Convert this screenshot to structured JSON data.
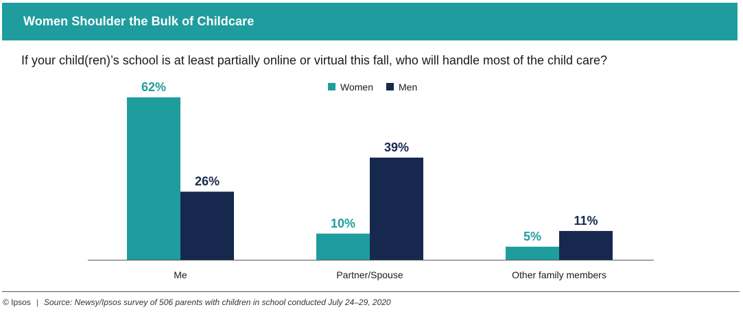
{
  "header": {
    "title": "Women Shoulder the Bulk of Childcare"
  },
  "question": "If your child(ren)’s school is at least partially online or virtual this fall, who will handle most of the child care?",
  "colors": {
    "women": "#1f9d9e",
    "men": "#17284e",
    "header_bg": "#1f9d9e"
  },
  "chart_data": {
    "type": "bar",
    "title": "Women Shoulder the Bulk of Childcare",
    "categories": [
      "Me",
      "Partner/Spouse",
      "Other family members"
    ],
    "series": [
      {
        "name": "Women",
        "values": [
          62,
          10,
          5
        ],
        "labels": [
          "62%",
          "10%",
          "5%"
        ]
      },
      {
        "name": "Men",
        "values": [
          26,
          39,
          11
        ],
        "labels": [
          "26%",
          "39%",
          "11%"
        ]
      }
    ],
    "xlabel": "",
    "ylabel": "",
    "ylim": [
      0,
      62
    ],
    "legend": "top-center",
    "grid": false
  },
  "footer": {
    "copyright": "© Ipsos",
    "separator": "|",
    "source": "Source: Newsy/Ipsos survey of 506 parents with children in school conducted July 24–29, 2020"
  }
}
